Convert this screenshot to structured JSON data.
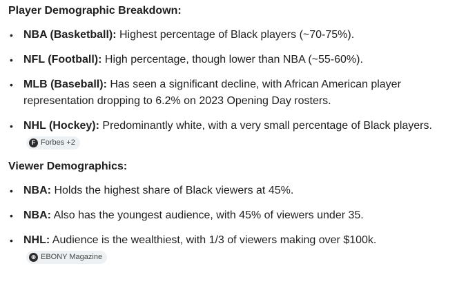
{
  "section1": {
    "heading": "Player Demographic Breakdown:",
    "items": [
      {
        "term": "NBA (Basketball):",
        "text": " Highest percentage of Black players (~70-75%)."
      },
      {
        "term": "NFL (Football):",
        "text": " High percentage, though lower than NBA (~55-60%)."
      },
      {
        "term": "MLB (Baseball):",
        "text": " Has seen a significant decline, with African American player representation dropping to 6.2% on 2023 Opening Day rosters."
      },
      {
        "term": "NHL (Hockey):",
        "text": " Predominantly white, with a very small percentage of Black players.",
        "source": {
          "icon": "forbes-logo-icon",
          "icon_glyph": "F",
          "label": "Forbes +2"
        }
      }
    ]
  },
  "section2": {
    "heading": "Viewer Demographics:",
    "items": [
      {
        "term": "NBA:",
        "text": " Holds the highest share of Black viewers at 45%."
      },
      {
        "term": "NBA:",
        "text": " Also has the youngest audience, with 45% of viewers under 35."
      },
      {
        "term": "NHL:",
        "text": " Audience is the wealthiest, with 1/3 of viewers making over $100k.",
        "source": {
          "icon": "ebony-logo-icon",
          "icon_glyph": "⊕",
          "label": "EBONY Magazine"
        }
      }
    ]
  },
  "bullet_glyph": "•"
}
